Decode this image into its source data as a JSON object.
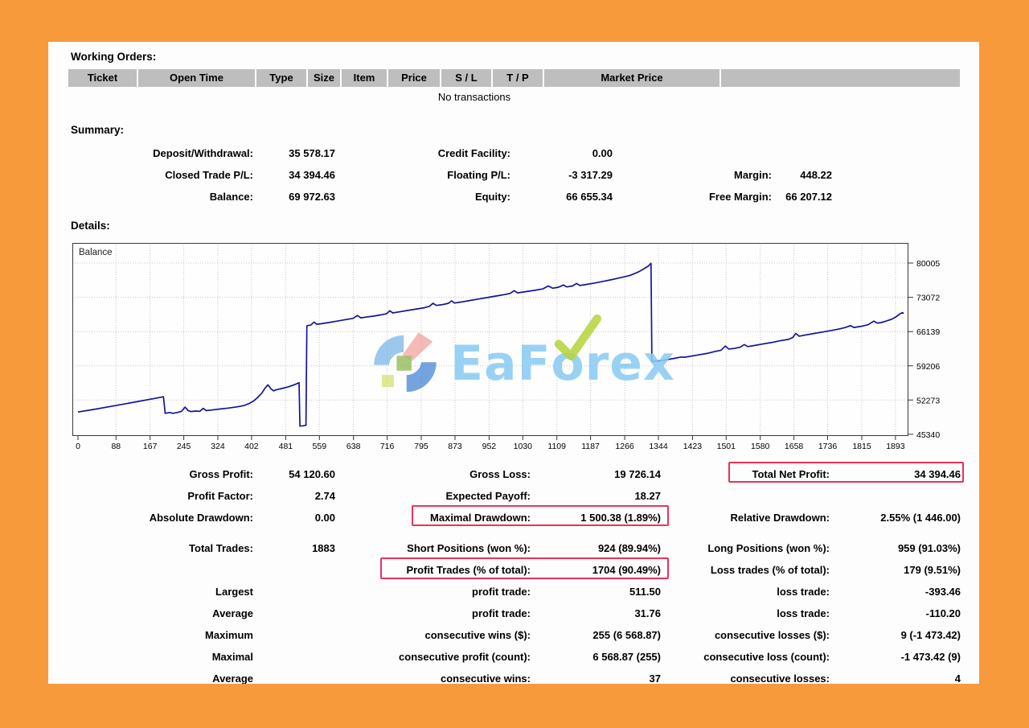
{
  "page": {
    "border_color": "#f79a3c",
    "panel_bg": "#fdfdfd",
    "header_cell_bg": "#bebebe"
  },
  "working_orders": {
    "title": "Working Orders:",
    "columns": [
      {
        "label": "Ticket"
      },
      {
        "label": "Open Time"
      },
      {
        "label": "Type"
      },
      {
        "label": "Size"
      },
      {
        "label": "Item"
      },
      {
        "label": "Price"
      },
      {
        "label": "S / L"
      },
      {
        "label": "T / P"
      },
      {
        "label": "Market Price"
      },
      {
        "label": ""
      }
    ],
    "empty_message": "No transactions"
  },
  "summary": {
    "title": "Summary:",
    "rows": [
      {
        "c1l": "Deposit/Withdrawal:",
        "c1v": "35 578.17",
        "c2l": "Credit Facility:",
        "c2v": "0.00",
        "c3l": "",
        "c3v": ""
      },
      {
        "c1l": "Closed Trade P/L:",
        "c1v": "34 394.46",
        "c2l": "Floating P/L:",
        "c2v": "-3 317.29",
        "c3l": "Margin:",
        "c3v": "448.22"
      },
      {
        "c1l": "Balance:",
        "c1v": "69 972.63",
        "c2l": "Equity:",
        "c2v": "66 655.34",
        "c3l": "Free Margin:",
        "c3v": "66 207.12"
      }
    ]
  },
  "details": {
    "title": "Details:",
    "watermark": {
      "brand": "EaForex",
      "part1": "EaF",
      "part2": "o",
      "part3": "rex",
      "text_color": "rgba(139,203,244,0.88)",
      "check_color": "#b5d43b",
      "logo_colors": {
        "blue_light": "#79b3e8",
        "blue_dark": "#4a87d6",
        "red": "#f19a94",
        "green": "#8cba50",
        "yellow_green": "#d3e272"
      }
    },
    "chart_data": {
      "type": "line",
      "title": "Balance",
      "xlabel": "",
      "ylabel": "",
      "grid": true,
      "legend_position": "in-plot-top-left",
      "x_ticks": [
        0,
        88,
        167,
        245,
        324,
        402,
        481,
        559,
        638,
        716,
        795,
        873,
        952,
        1030,
        1109,
        1187,
        1266,
        1344,
        1423,
        1501,
        1580,
        1658,
        1736,
        1815,
        1893
      ],
      "y_ticks": [
        80005,
        73072,
        66139,
        59206,
        52273,
        45340
      ],
      "xlim": [
        -13,
        1923
      ],
      "ylim": [
        45000,
        84080
      ],
      "series": [
        {
          "name": "Balance",
          "color": "#121694",
          "points": [
            [
              0,
              49850
            ],
            [
              35,
              50350
            ],
            [
              70,
              50900
            ],
            [
              105,
              51450
            ],
            [
              140,
              52000
            ],
            [
              175,
              52550
            ],
            [
              198,
              52950
            ],
            [
              202,
              49600
            ],
            [
              212,
              49750
            ],
            [
              220,
              49600
            ],
            [
              230,
              49750
            ],
            [
              240,
              50000
            ],
            [
              248,
              50850
            ],
            [
              255,
              50150
            ],
            [
              262,
              49950
            ],
            [
              272,
              50050
            ],
            [
              282,
              50000
            ],
            [
              290,
              50600
            ],
            [
              297,
              50150
            ],
            [
              308,
              50250
            ],
            [
              328,
              50450
            ],
            [
              348,
              50650
            ],
            [
              368,
              50900
            ],
            [
              386,
              51200
            ],
            [
              397,
              51600
            ],
            [
              407,
              52100
            ],
            [
              416,
              52800
            ],
            [
              425,
              53600
            ],
            [
              433,
              54650
            ],
            [
              440,
              55350
            ],
            [
              447,
              54550
            ],
            [
              453,
              54150
            ],
            [
              459,
              54350
            ],
            [
              472,
              54600
            ],
            [
              487,
              54950
            ],
            [
              502,
              55400
            ],
            [
              512,
              55800
            ],
            [
              514,
              47000
            ],
            [
              521,
              47070
            ],
            [
              528,
              47170
            ],
            [
              530,
              67300
            ],
            [
              539,
              67450
            ],
            [
              547,
              68050
            ],
            [
              553,
              67620
            ],
            [
              562,
              67720
            ],
            [
              580,
              67960
            ],
            [
              600,
              68260
            ],
            [
              620,
              68560
            ],
            [
              637,
              68810
            ],
            [
              647,
              69400
            ],
            [
              655,
              68920
            ],
            [
              667,
              69070
            ],
            [
              684,
              69270
            ],
            [
              702,
              69520
            ],
            [
              715,
              69770
            ],
            [
              722,
              70360
            ],
            [
              729,
              69920
            ],
            [
              744,
              70130
            ],
            [
              764,
              70420
            ],
            [
              784,
              70710
            ],
            [
              802,
              70960
            ],
            [
              814,
              71260
            ],
            [
              822,
              71860
            ],
            [
              830,
              71420
            ],
            [
              846,
              71620
            ],
            [
              858,
              71870
            ],
            [
              865,
              72360
            ],
            [
              872,
              71920
            ],
            [
              888,
              72130
            ],
            [
              908,
              72430
            ],
            [
              928,
              72730
            ],
            [
              948,
              73030
            ],
            [
              968,
              73330
            ],
            [
              988,
              73630
            ],
            [
              1001,
              73870
            ],
            [
              1010,
              74420
            ],
            [
              1018,
              73970
            ],
            [
              1036,
              74220
            ],
            [
              1056,
              74470
            ],
            [
              1076,
              74770
            ],
            [
              1089,
              75370
            ],
            [
              1099,
              74920
            ],
            [
              1113,
              75120
            ],
            [
              1124,
              75570
            ],
            [
              1132,
              75170
            ],
            [
              1145,
              75370
            ],
            [
              1155,
              75870
            ],
            [
              1162,
              75470
            ],
            [
              1177,
              75670
            ],
            [
              1197,
              75970
            ],
            [
              1217,
              76320
            ],
            [
              1237,
              76670
            ],
            [
              1257,
              77070
            ],
            [
              1277,
              77470
            ],
            [
              1289,
              77870
            ],
            [
              1299,
              78270
            ],
            [
              1311,
              78870
            ],
            [
              1321,
              79430
            ],
            [
              1327,
              79960
            ],
            [
              1329,
              60100
            ],
            [
              1343,
              60160
            ],
            [
              1361,
              60410
            ],
            [
              1381,
              60710
            ],
            [
              1397,
              60990
            ],
            [
              1405,
              60940
            ],
            [
              1419,
              61160
            ],
            [
              1439,
              61460
            ],
            [
              1459,
              61760
            ],
            [
              1473,
              62060
            ],
            [
              1489,
              62360
            ],
            [
              1499,
              63210
            ],
            [
              1507,
              62610
            ],
            [
              1519,
              62710
            ],
            [
              1533,
              62960
            ],
            [
              1543,
              63510
            ],
            [
              1551,
              63110
            ],
            [
              1565,
              63310
            ],
            [
              1585,
              63610
            ],
            [
              1605,
              63910
            ],
            [
              1625,
              64260
            ],
            [
              1645,
              64560
            ],
            [
              1655,
              64910
            ],
            [
              1662,
              65760
            ],
            [
              1670,
              65210
            ],
            [
              1685,
              65460
            ],
            [
              1705,
              65760
            ],
            [
              1725,
              66060
            ],
            [
              1745,
              66360
            ],
            [
              1765,
              66710
            ],
            [
              1779,
              67010
            ],
            [
              1789,
              67360
            ],
            [
              1797,
              66960
            ],
            [
              1811,
              67160
            ],
            [
              1829,
              67510
            ],
            [
              1843,
              68260
            ],
            [
              1851,
              67860
            ],
            [
              1860,
              67960
            ],
            [
              1871,
              68260
            ],
            [
              1885,
              68660
            ],
            [
              1895,
              69160
            ],
            [
              1903,
              69710
            ],
            [
              1909,
              69975
            ],
            [
              1912,
              69800
            ]
          ]
        }
      ]
    }
  },
  "stats": {
    "highlight_color": "#e8335a",
    "rows": [
      {
        "c1l": "Gross Profit:",
        "c1v": "54 120.60",
        "c2l": "Gross Loss:",
        "c2v": "19 726.14",
        "c3l": "Total Net Profit:",
        "c3v": "34 394.46"
      },
      {
        "c1l": "Profit Factor:",
        "c1v": "2.74",
        "c2l": "Expected Payoff:",
        "c2v": "18.27",
        "c3l": "",
        "c3v": ""
      },
      {
        "c1l": "Absolute Drawdown:",
        "c1v": "0.00",
        "c2l": "Maximal Drawdown:",
        "c2v": "1 500.38 (1.89%)",
        "c3l": "Relative Drawdown:",
        "c3v": "2.55% (1 446.00)"
      },
      {
        "c1l": "Total Trades:",
        "c1v": "1883",
        "c2l": "Short Positions (won %):",
        "c2v": "924 (89.94%)",
        "c3l": "Long Positions (won %):",
        "c3v": "959 (91.03%)"
      },
      {
        "c1l": "",
        "c1v": "",
        "c2l": "Profit Trades (% of total):",
        "c2v": "1704 (90.49%)",
        "c3l": "Loss trades (% of total):",
        "c3v": "179 (9.51%)"
      },
      {
        "c1l": "Largest",
        "c1v": "",
        "c2l": "profit trade:",
        "c2v": "511.50",
        "c3l": "loss trade:",
        "c3v": "-393.46"
      },
      {
        "c1l": "Average",
        "c1v": "",
        "c2l": "profit trade:",
        "c2v": "31.76",
        "c3l": "loss trade:",
        "c3v": "-110.20"
      },
      {
        "c1l": "Maximum",
        "c1v": "",
        "c2l": "consecutive wins ($):",
        "c2v": "255 (6 568.87)",
        "c3l": "consecutive losses ($):",
        "c3v": "9 (-1 473.42)"
      },
      {
        "c1l": "Maximal",
        "c1v": "",
        "c2l": "consecutive profit (count):",
        "c2v": "6 568.87 (255)",
        "c3l": "consecutive loss (count):",
        "c3v": "-1 473.42 (9)"
      },
      {
        "c1l": "Average",
        "c1v": "",
        "c2l": "consecutive wins:",
        "c2v": "37",
        "c3l": "consecutive losses:",
        "c3v": "4"
      }
    ]
  }
}
